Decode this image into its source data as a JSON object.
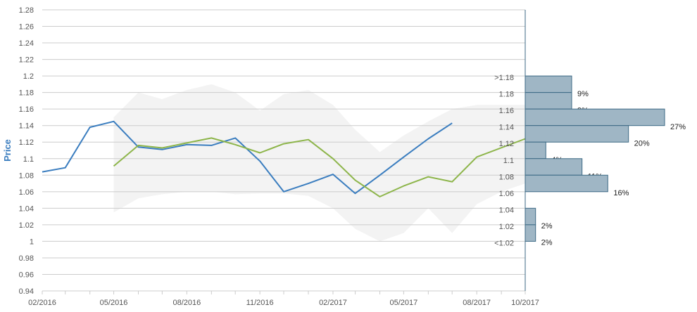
{
  "chart_data": {
    "type": "line",
    "ylabel": "Price",
    "ylim": [
      0.94,
      1.28
    ],
    "yticks": [
      "1.28",
      "1.26",
      "1.24",
      "1.22",
      "1.2",
      "1.18",
      "1.16",
      "1.14",
      "1.12",
      "1.1",
      "1.08",
      "1.06",
      "1.04",
      "1.02",
      "1",
      "0.98",
      "0.96",
      "0.94"
    ],
    "xticks": [
      {
        "label": "02/2016",
        "date": "2016-02-01"
      },
      {
        "label": "05/2016",
        "date": "2016-05-01"
      },
      {
        "label": "08/2016",
        "date": "2016-08-01"
      },
      {
        "label": "11/2016",
        "date": "2016-11-01"
      },
      {
        "label": "02/2017",
        "date": "2017-02-01"
      },
      {
        "label": "05/2017",
        "date": "2017-05-01"
      },
      {
        "label": "08/2017",
        "date": "2017-08-01"
      },
      {
        "label": "10/2017",
        "date": "2017-10-01"
      }
    ],
    "xlim": [
      "2016-02-01",
      "2017-10-01"
    ],
    "grid": true,
    "colors": {
      "blue": "#3a7dbf",
      "green": "#8db54a",
      "band": "#f3f3f3",
      "hist_fill": "#9fb6c5",
      "hist_stroke": "#3d6a85",
      "grid": "#cccccc"
    },
    "series": [
      {
        "color": "#3a7dbf",
        "x": [
          "2016-02-01",
          "2016-03-01",
          "2016-04-01",
          "2016-05-01",
          "2016-06-01",
          "2016-07-01",
          "2016-08-01",
          "2016-09-01",
          "2016-10-01",
          "2016-11-01",
          "2016-12-01",
          "2017-01-01",
          "2017-02-01",
          "2017-03-01",
          "2017-04-01",
          "2017-05-01",
          "2017-06-01",
          "2017-07-01"
        ],
        "y": [
          1.084,
          1.089,
          1.138,
          1.145,
          1.114,
          1.111,
          1.117,
          1.116,
          1.125,
          1.097,
          1.06,
          1.07,
          1.081,
          1.058,
          1.08,
          1.102,
          1.124,
          1.143
        ]
      },
      {
        "color": "#8db54a",
        "x": [
          "2016-05-01",
          "2016-06-01",
          "2016-07-01",
          "2016-08-01",
          "2016-09-01",
          "2016-10-01",
          "2016-11-01",
          "2016-12-01",
          "2017-01-01",
          "2017-02-01",
          "2017-03-01",
          "2017-04-01",
          "2017-05-01",
          "2017-06-01",
          "2017-07-01",
          "2017-08-01",
          "2017-10-01"
        ],
        "y": [
          1.091,
          1.116,
          1.113,
          1.119,
          1.125,
          1.117,
          1.107,
          1.118,
          1.123,
          1.1,
          1.074,
          1.054,
          1.067,
          1.078,
          1.072,
          1.102,
          1.124
        ]
      }
    ],
    "band": {
      "x": [
        "2016-05-01",
        "2016-06-01",
        "2016-07-01",
        "2016-08-01",
        "2016-09-01",
        "2016-10-01",
        "2016-11-01",
        "2016-12-01",
        "2017-01-01",
        "2017-02-01",
        "2017-03-01",
        "2017-04-01",
        "2017-05-01",
        "2017-06-01",
        "2017-07-01",
        "2017-08-01",
        "2017-09-01",
        "2017-10-01"
      ],
      "upper": [
        1.15,
        1.18,
        1.172,
        1.183,
        1.19,
        1.18,
        1.158,
        1.178,
        1.183,
        1.165,
        1.135,
        1.108,
        1.128,
        1.145,
        1.16,
        1.165,
        1.165,
        1.165
      ],
      "lower": [
        1.035,
        1.052,
        1.057,
        1.06,
        1.06,
        1.057,
        1.058,
        1.058,
        1.055,
        1.04,
        1.015,
        1.0,
        1.01,
        1.04,
        1.01,
        1.045,
        1.06,
        1.07
      ]
    },
    "histogram": [
      {
        "label": ">1.18",
        "percent": 9,
        "value_label": "9%"
      },
      {
        "label": "1.18",
        "percent": 9,
        "value_label": "9%"
      },
      {
        "label": "1.16",
        "percent": 27,
        "value_label": "27%"
      },
      {
        "label": "1.14",
        "percent": 20,
        "value_label": "20%"
      },
      {
        "label": "1.12",
        "percent": 4,
        "value_label": "4%"
      },
      {
        "label": "1.1",
        "percent": 11,
        "value_label": "11%"
      },
      {
        "label": "1.08",
        "percent": 16,
        "value_label": "16%"
      },
      {
        "label": "1.06",
        "percent": 0,
        "value_label": ""
      },
      {
        "label": "1.04",
        "percent": 2,
        "value_label": "2%"
      },
      {
        "label": "1.02",
        "percent": 2,
        "value_label": "2%"
      },
      {
        "label": "<1.02",
        "percent": 0,
        "value_label": ""
      }
    ]
  }
}
